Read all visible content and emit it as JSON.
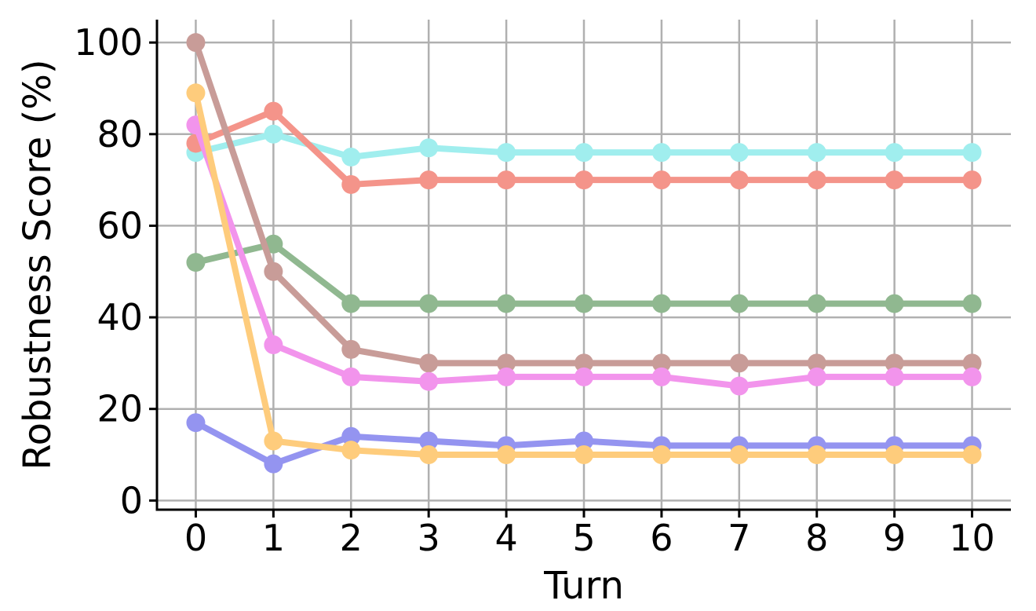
{
  "chart_data": {
    "type": "line",
    "title": "",
    "xlabel": "Turn",
    "ylabel": "Robustness Score (%)",
    "x": [
      0,
      1,
      2,
      3,
      4,
      5,
      6,
      7,
      8,
      9,
      10
    ],
    "xlim": [
      -0.5,
      10.5
    ],
    "ylim": [
      -2,
      105
    ],
    "yticks": [
      0,
      20,
      40,
      60,
      80,
      100
    ],
    "grid": true,
    "series": [
      {
        "color": "#a0eeee",
        "values": [
          76,
          80,
          75,
          77,
          76,
          76,
          76,
          76,
          76,
          76,
          76
        ]
      },
      {
        "color": "#f4948a",
        "values": [
          78,
          85,
          69,
          70,
          70,
          70,
          70,
          70,
          70,
          70,
          70
        ]
      },
      {
        "color": "#90b890",
        "values": [
          52,
          56,
          43,
          43,
          43,
          43,
          43,
          43,
          43,
          43,
          43
        ]
      },
      {
        "color": "#c89c98",
        "values": [
          100,
          50,
          33,
          30,
          30,
          30,
          30,
          30,
          30,
          30,
          30
        ]
      },
      {
        "color": "#f294ec",
        "values": [
          82,
          34,
          27,
          26,
          27,
          27,
          27,
          25,
          27,
          27,
          27
        ]
      },
      {
        "color": "#9494f0",
        "values": [
          17,
          8,
          14,
          13,
          12,
          13,
          12,
          12,
          12,
          12,
          12
        ]
      },
      {
        "color": "#fecc7c",
        "values": [
          89,
          13,
          11,
          10,
          10,
          10,
          10,
          10,
          10,
          10,
          10
        ]
      }
    ]
  }
}
